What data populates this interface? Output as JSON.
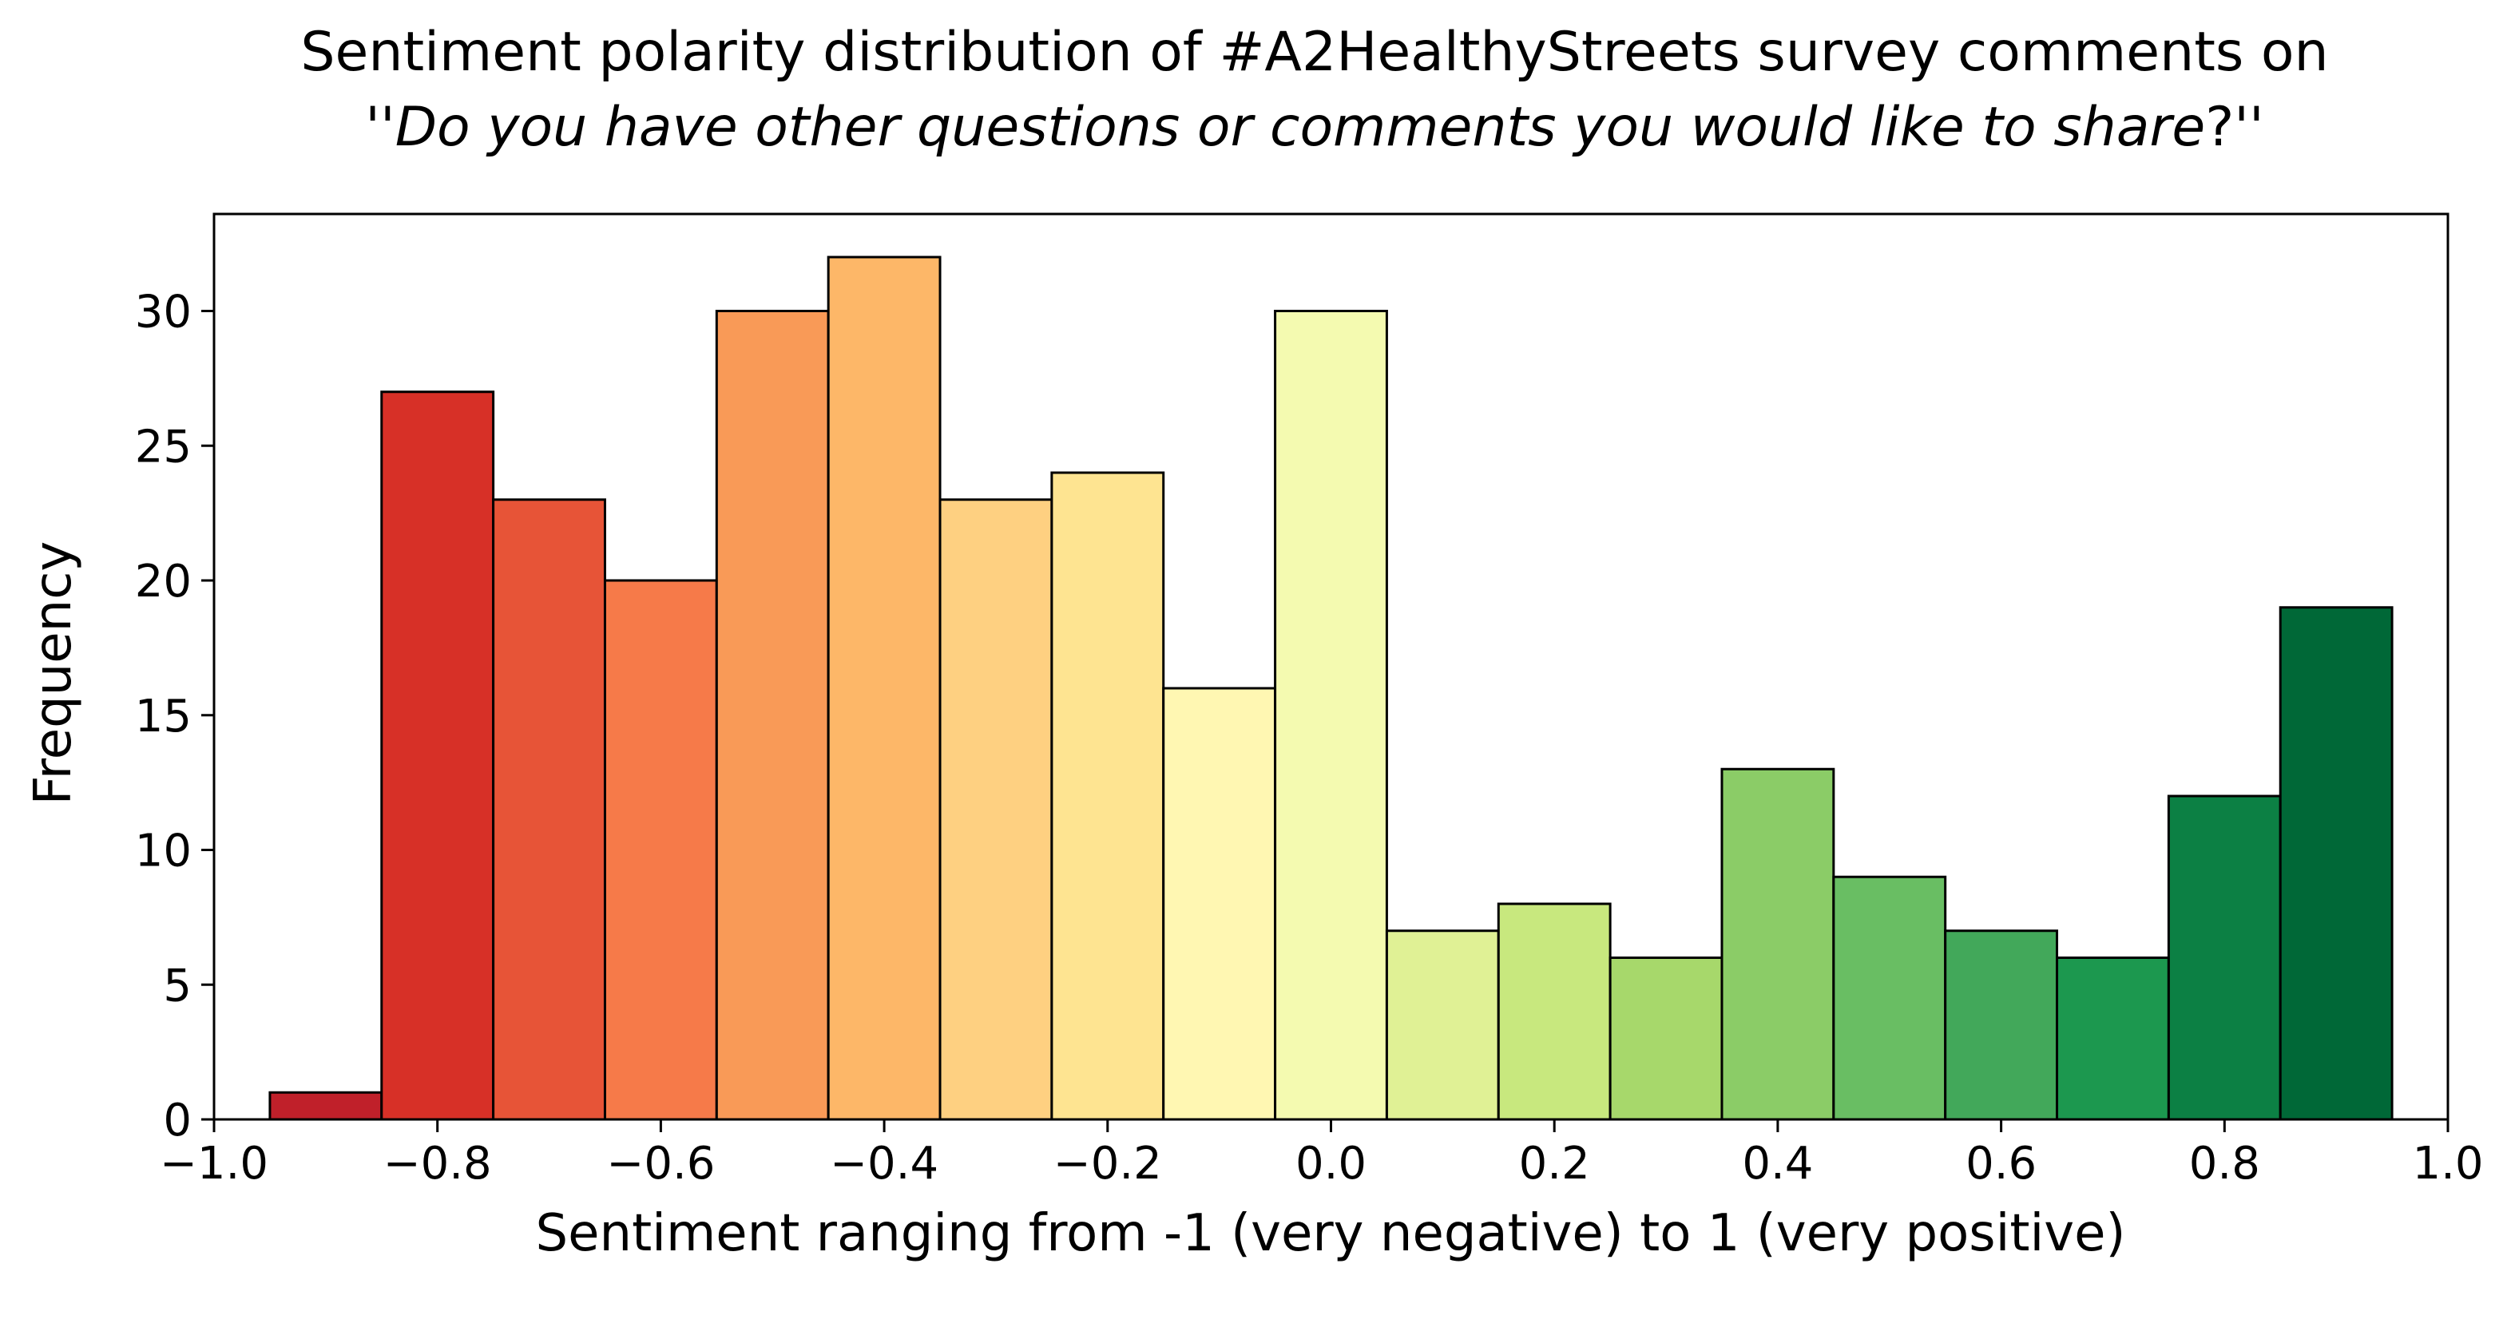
{
  "chart_data": {
    "type": "bar",
    "title_line1": "Sentiment polarity distribution of #A2HealthyStreets survey comments on",
    "title_line2_prefix": "''",
    "title_line2_italic": "Do you have other questions or comments you would like to share",
    "title_line2_suffix": "?''",
    "xlabel": "Sentiment ranging from -1 (very negative) to 1 (very positive)",
    "ylabel": "Frequency",
    "xlim": [
      -1.0,
      1.0
    ],
    "ylim": [
      0,
      33.6
    ],
    "x_ticks": [
      -1.0,
      -0.8,
      -0.6,
      -0.4,
      -0.2,
      0.0,
      0.2,
      0.4,
      0.6,
      0.8,
      1.0
    ],
    "x_tick_labels": [
      "−1.0",
      "−0.8",
      "−0.6",
      "−0.4",
      "−0.2",
      "0.0",
      "0.2",
      "0.4",
      "0.6",
      "0.8",
      "1.0"
    ],
    "y_ticks": [
      0,
      5,
      10,
      15,
      20,
      25,
      30
    ],
    "y_tick_labels": [
      "0",
      "5",
      "10",
      "15",
      "20",
      "25",
      "30"
    ],
    "bin_centers": [
      -0.9,
      -0.8,
      -0.7,
      -0.6,
      -0.5,
      -0.4,
      -0.3,
      -0.2,
      -0.1,
      0.0,
      0.1,
      0.2,
      0.3,
      0.4,
      0.5,
      0.6,
      0.7,
      0.8,
      0.9
    ],
    "bin_width": 0.1,
    "values": [
      1,
      27,
      23,
      20,
      30,
      32,
      23,
      24,
      16,
      30,
      7,
      8,
      6,
      13,
      9,
      7,
      6,
      12,
      19
    ],
    "bar_colors": [
      "#c0202a",
      "#d73027",
      "#e75437",
      "#f67a49",
      "#f99a57",
      "#fdb768",
      "#fed081",
      "#fee491",
      "#fff7b2",
      "#f4fab0",
      "#e0f195",
      "#c8e87e",
      "#a7d86b",
      "#8bcc67",
      "#69be63",
      "#42a85a",
      "#1c984f",
      "#0c8044",
      "#006837"
    ],
    "grid": false,
    "legend": "none"
  }
}
